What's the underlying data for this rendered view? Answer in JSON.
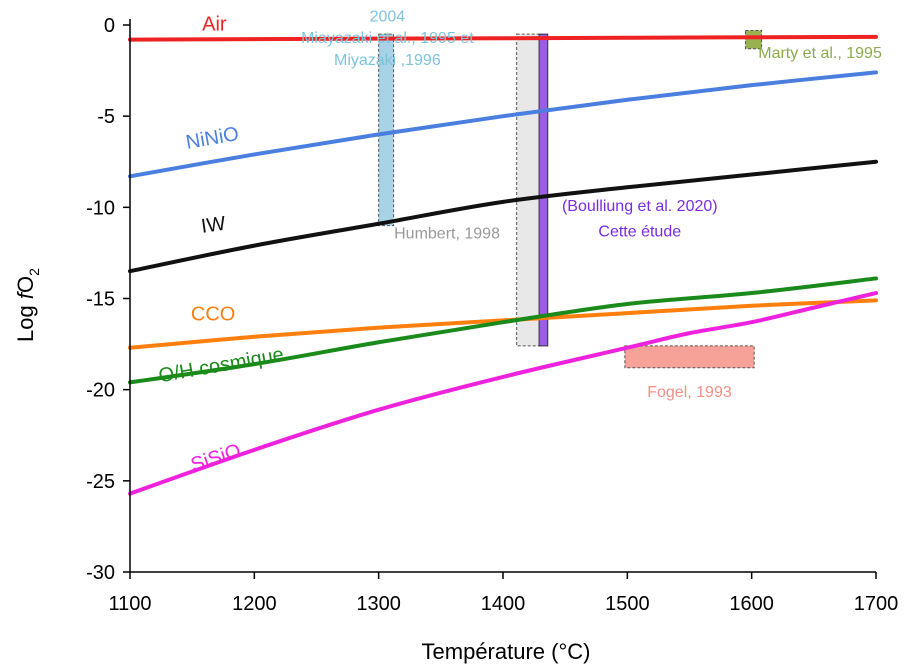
{
  "chart_data": {
    "type": "line",
    "xlabel": "Température (°C)",
    "ylabel": {
      "prefix": "Log ",
      "italic": "f",
      "main": "O",
      "sub": "2"
    },
    "xlim": [
      1100,
      1700
    ],
    "ylim": [
      -30,
      0
    ],
    "xticks": [
      1100,
      1200,
      1300,
      1400,
      1500,
      1600,
      1700
    ],
    "yticks": [
      -30,
      -25,
      -20,
      -15,
      -10,
      -5,
      0
    ],
    "grid": false,
    "series": [
      {
        "name": "Air",
        "color": "#ee2222",
        "points": [
          [
            1100,
            -0.8
          ],
          [
            1300,
            -0.75
          ],
          [
            1500,
            -0.7
          ],
          [
            1700,
            -0.65
          ]
        ]
      },
      {
        "name": "NiNiO",
        "color": "#4a7fe0",
        "points": [
          [
            1100,
            -8.3
          ],
          [
            1200,
            -7.1
          ],
          [
            1300,
            -6.0
          ],
          [
            1400,
            -5.0
          ],
          [
            1500,
            -4.1
          ],
          [
            1600,
            -3.3
          ],
          [
            1700,
            -2.6
          ]
        ]
      },
      {
        "name": "IW",
        "color": "#111111",
        "points": [
          [
            1100,
            -13.5
          ],
          [
            1200,
            -12.1
          ],
          [
            1300,
            -10.9
          ],
          [
            1400,
            -9.7
          ],
          [
            1500,
            -8.9
          ],
          [
            1600,
            -8.2
          ],
          [
            1700,
            -7.5
          ]
        ]
      },
      {
        "name": "CCO",
        "color": "#ff7f0e",
        "points": [
          [
            1100,
            -17.7
          ],
          [
            1200,
            -17.1
          ],
          [
            1300,
            -16.6
          ],
          [
            1400,
            -16.2
          ],
          [
            1500,
            -15.8
          ],
          [
            1600,
            -15.4
          ],
          [
            1700,
            -15.1
          ]
        ]
      },
      {
        "name": "O/H cosmique",
        "color": "#1a8a1a",
        "points": [
          [
            1100,
            -19.6
          ],
          [
            1200,
            -18.6
          ],
          [
            1300,
            -17.4
          ],
          [
            1400,
            -16.3
          ],
          [
            1500,
            -15.3
          ],
          [
            1600,
            -14.7
          ],
          [
            1700,
            -13.9
          ]
        ]
      },
      {
        "name": "SiSiO",
        "color": "#ee22dd",
        "points": [
          [
            1100,
            -25.7
          ],
          [
            1200,
            -23.3
          ],
          [
            1300,
            -21.1
          ],
          [
            1400,
            -19.3
          ],
          [
            1500,
            -17.7
          ],
          [
            1550,
            -16.9
          ],
          [
            1600,
            -16.3
          ],
          [
            1650,
            -15.5
          ],
          [
            1700,
            -14.7
          ]
        ]
      }
    ],
    "series_labels": [
      {
        "text": "Air",
        "color": "#ee2222",
        "x": 1158,
        "y": -0.3,
        "angle": 0
      },
      {
        "text": "NiNiO",
        "color": "#4a7fe0",
        "x": 1146,
        "y": -6.8,
        "angle": -10
      },
      {
        "text": "IW",
        "color": "#111111",
        "x": 1158,
        "y": -11.4,
        "angle": -8
      },
      {
        "text": "CCO",
        "color": "#ff7f0e",
        "x": 1149,
        "y": -16.2,
        "angle": 0
      },
      {
        "text": "O/H cosmique",
        "color": "#1a8a1a",
        "x": 1124,
        "y": -19.6,
        "angle": -10
      },
      {
        "text": "SiSiO",
        "color": "#ee22dd",
        "x": 1151,
        "y": -24.5,
        "angle": -18
      }
    ],
    "rectangles": [
      {
        "label": "Miyazaki ,1996 / Miayazaki et al., 1995 et 2004",
        "x": [
          1300,
          1312
        ],
        "y": [
          -11.0,
          -0.5
        ],
        "fill": "#a8d3e6",
        "stroke": "#555555",
        "dashed": true
      },
      {
        "label": "Humbert, 1998",
        "x": [
          1411,
          1430
        ],
        "y": [
          -17.6,
          -0.5
        ],
        "fill": "#e8e8e8",
        "stroke": "#555555",
        "dashed": true
      },
      {
        "label": "Cette étude (Boulliung et al. 2020)",
        "x": [
          1429,
          1436
        ],
        "y": [
          -17.6,
          -0.5
        ],
        "fill": "#9b5de5",
        "stroke": "#333333",
        "dashed": false
      },
      {
        "label": "Marty et al., 1995",
        "x": [
          1595,
          1608
        ],
        "y": [
          -1.3,
          -0.3
        ],
        "fill": "#98b250",
        "stroke": "#555555",
        "dashed": true
      },
      {
        "label": "Fogel, 1993",
        "x": [
          1498,
          1602
        ],
        "y": [
          -18.8,
          -17.6
        ],
        "fill": "#f7a299",
        "stroke": "#555555",
        "dashed": true
      }
    ],
    "annotations": [
      {
        "lines": [
          "Miyazaki ,1996",
          "Miayazaki et al., 1995 et",
          "2004"
        ],
        "color": "#7ec3dc",
        "x": 1307,
        "y": -2.2,
        "line_step": 1.2
      },
      {
        "lines": [
          "Humbert, 1998"
        ],
        "color": "#9a9a9a",
        "x": 1355,
        "y": -11.7,
        "line_step": 0
      },
      {
        "lines": [
          "Cette étude",
          "(Boulliung et al. 2020)"
        ],
        "color": "#7a2be2",
        "x": 1510,
        "y": -11.6,
        "line_step": 1.4
      },
      {
        "lines": [
          "Marty et al., 1995"
        ],
        "color": "#8cab4e",
        "x": 1655,
        "y": -1.8,
        "line_step": 0
      },
      {
        "lines": [
          "Fogel, 1993"
        ],
        "color": "#f49086",
        "x": 1550,
        "y": -20.4,
        "line_step": 0
      }
    ]
  }
}
